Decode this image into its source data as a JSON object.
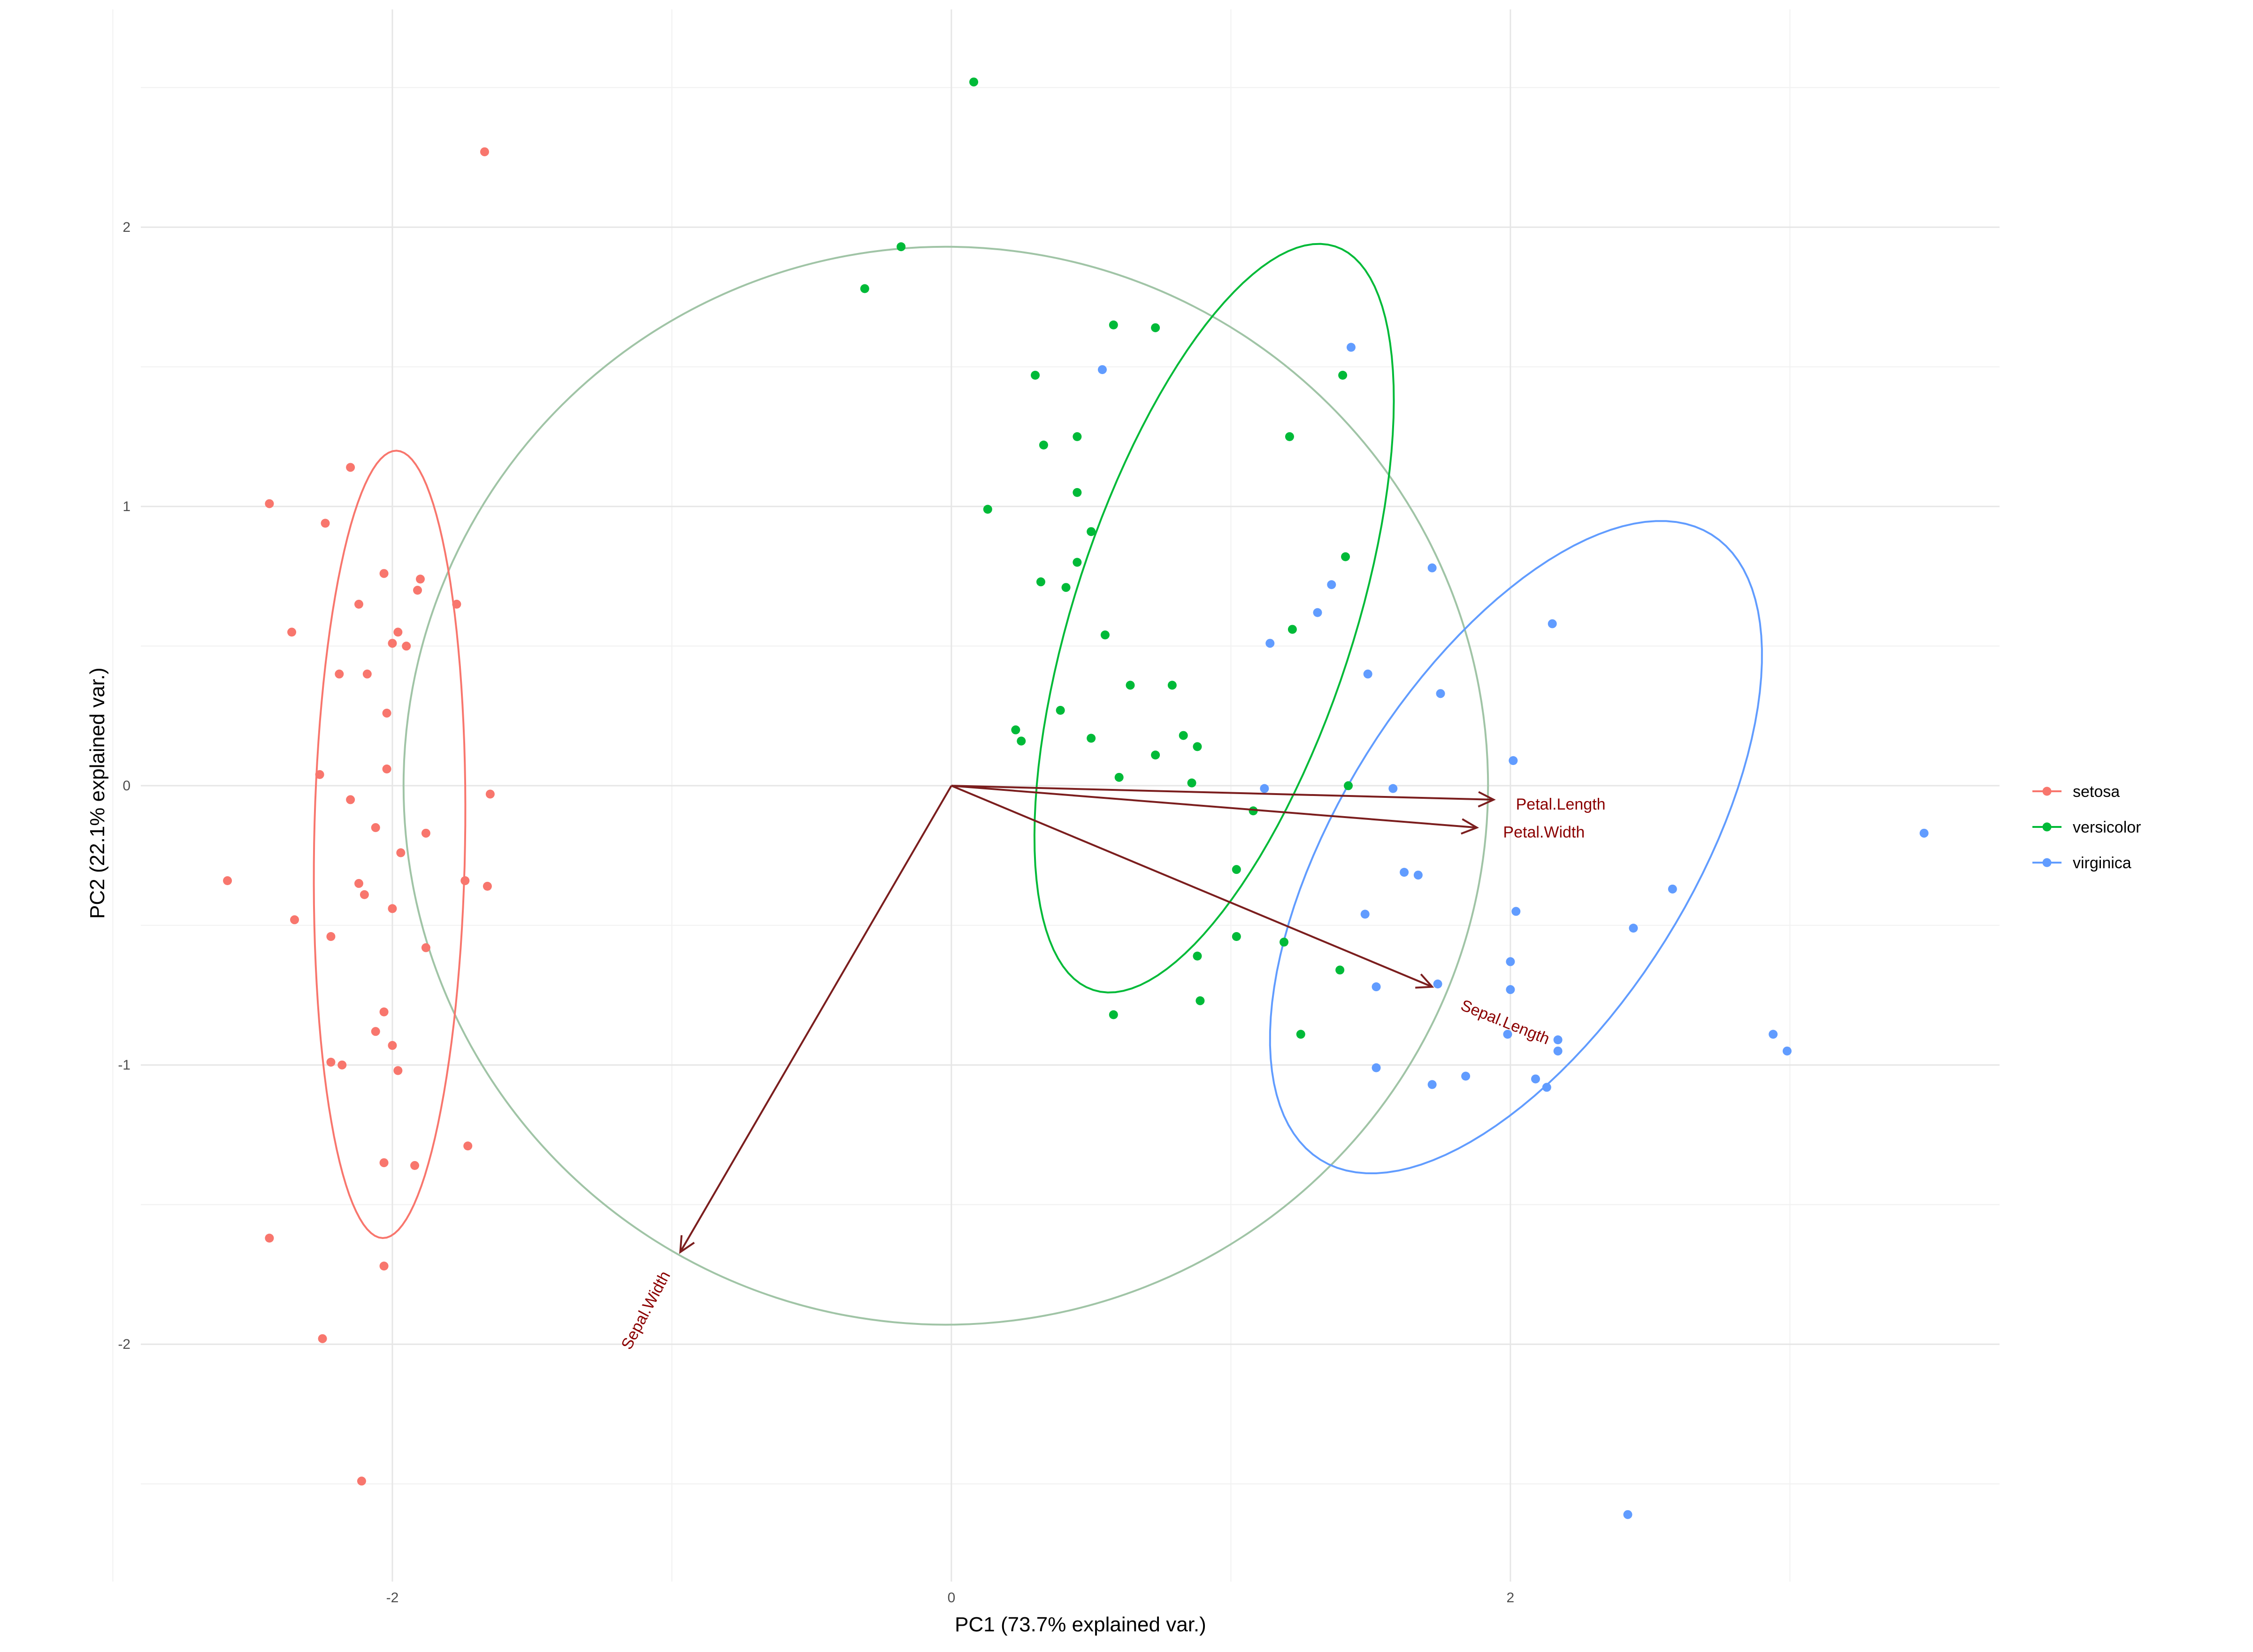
{
  "chart_data": {
    "type": "scatter",
    "xlabel": "PC1 (73.7% explained var.)",
    "ylabel": "PC2 (22.1% explained var.)",
    "xlim": [
      -2.9,
      3.75
    ],
    "ylim": [
      -2.85,
      2.78
    ],
    "x_ticks": [
      -2,
      0,
      2
    ],
    "y_ticks": [
      -2,
      -1,
      0,
      1,
      2
    ],
    "grid": true,
    "legend_position": "right",
    "colors": {
      "setosa": "#f8766d",
      "versicolor": "#00ba38",
      "virginica": "#619cff",
      "circle": "#a0c4a6",
      "arrow": "#7b1e1e",
      "arrow_label": "#8b0000",
      "grid_major": "#e6e6e6",
      "grid_minor": "#f2f2f2"
    },
    "series": [
      {
        "name": "setosa",
        "points": [
          [
            -1.67,
            2.27
          ],
          [
            -2.44,
            1.01
          ],
          [
            -2.24,
            0.94
          ],
          [
            -2.15,
            1.14
          ],
          [
            -2.03,
            0.76
          ],
          [
            -1.9,
            0.74
          ],
          [
            -1.91,
            0.7
          ],
          [
            -2.12,
            0.65
          ],
          [
            -1.77,
            0.65
          ],
          [
            -2.36,
            0.55
          ],
          [
            -1.98,
            0.55
          ],
          [
            -2.0,
            0.51
          ],
          [
            -1.95,
            0.5
          ],
          [
            -2.19,
            0.4
          ],
          [
            -2.09,
            0.4
          ],
          [
            -2.02,
            0.26
          ],
          [
            -2.02,
            0.06
          ],
          [
            -2.26,
            0.04
          ],
          [
            -2.15,
            -0.05
          ],
          [
            -1.65,
            -0.03
          ],
          [
            -2.06,
            -0.15
          ],
          [
            -1.88,
            -0.17
          ],
          [
            -1.97,
            -0.24
          ],
          [
            -2.59,
            -0.34
          ],
          [
            -2.12,
            -0.35
          ],
          [
            -1.74,
            -0.34
          ],
          [
            -1.66,
            -0.36
          ],
          [
            -2.1,
            -0.39
          ],
          [
            -2.0,
            -0.44
          ],
          [
            -2.35,
            -0.48
          ],
          [
            -2.22,
            -0.54
          ],
          [
            -1.88,
            -0.58
          ],
          [
            -2.03,
            -0.81
          ],
          [
            -2.06,
            -0.88
          ],
          [
            -2.0,
            -0.93
          ],
          [
            -2.22,
            -0.99
          ],
          [
            -2.18,
            -1.0
          ],
          [
            -1.98,
            -1.02
          ],
          [
            -1.73,
            -1.29
          ],
          [
            -2.03,
            -1.35
          ],
          [
            -1.92,
            -1.36
          ],
          [
            -2.44,
            -1.62
          ],
          [
            -2.03,
            -1.72
          ],
          [
            -2.25,
            -1.98
          ],
          [
            -2.11,
            -2.49
          ]
        ]
      },
      {
        "name": "versicolor",
        "points": [
          [
            0.08,
            2.52
          ],
          [
            -0.18,
            1.93
          ],
          [
            -0.31,
            1.78
          ],
          [
            0.58,
            1.65
          ],
          [
            0.73,
            1.64
          ],
          [
            0.3,
            1.47
          ],
          [
            1.4,
            1.47
          ],
          [
            0.45,
            1.25
          ],
          [
            1.21,
            1.25
          ],
          [
            0.33,
            1.22
          ],
          [
            0.13,
            0.99
          ],
          [
            0.45,
            1.05
          ],
          [
            0.5,
            0.91
          ],
          [
            0.45,
            0.8
          ],
          [
            1.41,
            0.82
          ],
          [
            0.32,
            0.73
          ],
          [
            0.41,
            0.71
          ],
          [
            1.22,
            0.56
          ],
          [
            0.55,
            0.54
          ],
          [
            0.64,
            0.36
          ],
          [
            0.79,
            0.36
          ],
          [
            0.39,
            0.27
          ],
          [
            0.23,
            0.2
          ],
          [
            0.25,
            0.16
          ],
          [
            0.83,
            0.18
          ],
          [
            0.5,
            0.17
          ],
          [
            0.88,
            0.14
          ],
          [
            0.73,
            0.11
          ],
          [
            0.6,
            0.03
          ],
          [
            0.86,
            0.01
          ],
          [
            1.42,
            0.0
          ],
          [
            1.08,
            -0.09
          ],
          [
            1.02,
            -0.3
          ],
          [
            1.02,
            -0.54
          ],
          [
            1.19,
            -0.56
          ],
          [
            0.88,
            -0.61
          ],
          [
            1.39,
            -0.66
          ],
          [
            0.58,
            -0.82
          ],
          [
            0.89,
            -0.77
          ],
          [
            1.25,
            -0.89
          ]
        ]
      },
      {
        "name": "virginica",
        "points": [
          [
            1.43,
            1.57
          ],
          [
            0.54,
            1.49
          ],
          [
            1.72,
            0.78
          ],
          [
            1.36,
            0.72
          ],
          [
            1.31,
            0.62
          ],
          [
            2.15,
            0.58
          ],
          [
            1.14,
            0.51
          ],
          [
            1.49,
            0.4
          ],
          [
            1.75,
            0.33
          ],
          [
            2.01,
            0.09
          ],
          [
            1.12,
            -0.01
          ],
          [
            1.58,
            -0.01
          ],
          [
            3.48,
            -0.17
          ],
          [
            1.62,
            -0.31
          ],
          [
            1.67,
            -0.32
          ],
          [
            2.58,
            -0.37
          ],
          [
            1.48,
            -0.46
          ],
          [
            2.02,
            -0.45
          ],
          [
            2.44,
            -0.51
          ],
          [
            2.0,
            -0.63
          ],
          [
            1.74,
            -0.71
          ],
          [
            1.52,
            -0.72
          ],
          [
            2.0,
            -0.73
          ],
          [
            1.99,
            -0.89
          ],
          [
            2.17,
            -0.91
          ],
          [
            2.17,
            -0.95
          ],
          [
            2.94,
            -0.89
          ],
          [
            2.99,
            -0.95
          ],
          [
            1.52,
            -1.01
          ],
          [
            1.72,
            -1.07
          ],
          [
            1.84,
            -1.04
          ],
          [
            2.09,
            -1.05
          ],
          [
            2.13,
            -1.08
          ],
          [
            2.42,
            -2.61
          ]
        ]
      }
    ],
    "ellipses": [
      {
        "series": "setosa",
        "cx": -2.01,
        "cy": -0.21,
        "rx": 0.27,
        "ry": 1.41,
        "angle_deg": 1.0,
        "color": "#f8766d"
      },
      {
        "series": "versicolor",
        "cx": 0.94,
        "cy": 0.6,
        "rx": 0.5,
        "ry": 1.4,
        "angle_deg": 18.0,
        "color": "#00ba38"
      },
      {
        "series": "virginica",
        "cx": 2.02,
        "cy": -0.22,
        "rx": 0.63,
        "ry": 1.32,
        "angle_deg": 32.0,
        "color": "#619cff"
      }
    ],
    "circle": {
      "cx": -0.02,
      "cy": 0.0,
      "rx": 1.94,
      "ry": 1.93
    },
    "arrows": [
      {
        "label": "Petal.Length",
        "x": 1.94,
        "y": -0.05,
        "label_x": 2.18,
        "label_y": -0.07,
        "label_angle": 0
      },
      {
        "label": "Petal.Width",
        "x": 1.88,
        "y": -0.15,
        "label_x": 2.12,
        "label_y": -0.17,
        "label_angle": 0
      },
      {
        "label": "Sepal.Length",
        "x": 1.72,
        "y": -0.72,
        "label_x": 1.98,
        "label_y": -0.85,
        "label_angle": 22
      },
      {
        "label": "Sepal.Width",
        "x": -0.97,
        "y": -1.67,
        "label_x": -1.09,
        "label_y": -1.88,
        "label_angle": -62
      }
    ],
    "legend": [
      "setosa",
      "versicolor",
      "virginica"
    ]
  }
}
